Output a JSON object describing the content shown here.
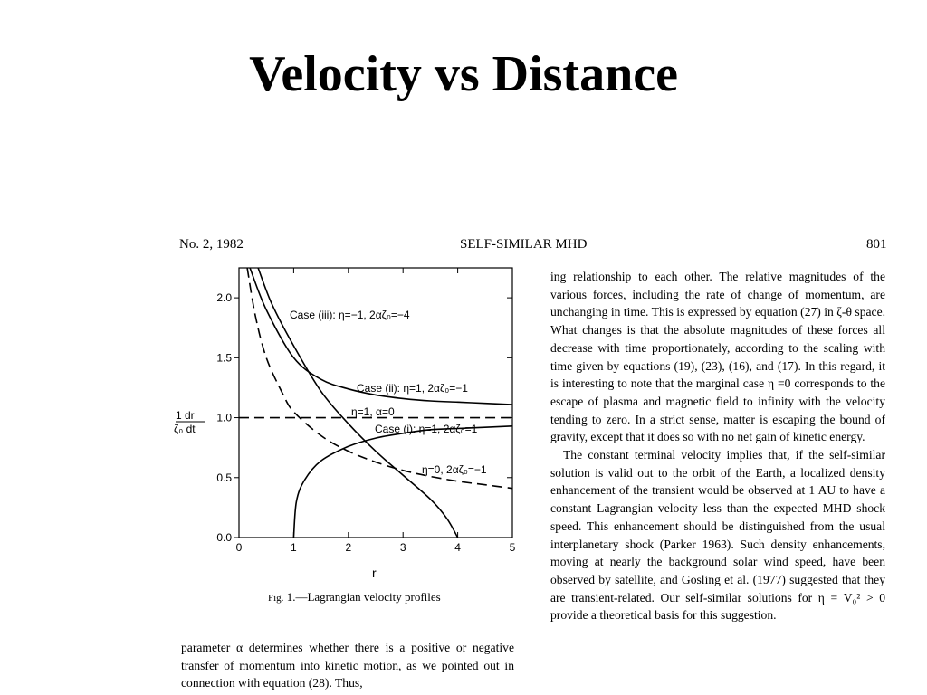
{
  "slide": {
    "title": "Velocity vs Distance"
  },
  "page": {
    "journal_issue": "No. 2, 1982",
    "running_title": "SELF-SIMILAR MHD",
    "page_number": "801"
  },
  "figure": {
    "caption_prefix": "Fig.",
    "caption_text": "1.—Lagrangian velocity profiles",
    "ylabel_top": "1  dr",
    "ylabel_bottom": "ζ₀ dt",
    "xlabel": "r",
    "labels": {
      "case3": "Case (iii): η=−1, 2αζ₀=−4",
      "case2": "Case (ii): η=1, 2αζ₀=−1",
      "eta1": "η=1, α=0",
      "case1": "Case (i): η=1, 2αζ₀=1",
      "eta0": "η=0, 2αζ₀=−1"
    }
  },
  "chart_data": {
    "type": "line",
    "xlabel": "r",
    "ylabel": "(1/ζ₀) dr/dt",
    "xlim": [
      0,
      5
    ],
    "ylim": [
      0,
      2.25
    ],
    "x_ticks": [
      "0",
      "1",
      "2",
      "3",
      "4",
      "5"
    ],
    "y_ticks": [
      "0.0",
      "0.5",
      "1.0",
      "1.5",
      "2.0"
    ],
    "series": [
      {
        "name": "Case (iii): η=−1, 2αζ₀=−4",
        "style": "solid",
        "x": [
          0.35,
          0.6,
          1.0,
          1.5,
          2.0,
          2.5,
          3.0,
          3.5,
          3.8,
          4.0
        ],
        "y": [
          2.25,
          1.95,
          1.6,
          1.22,
          0.95,
          0.72,
          0.52,
          0.32,
          0.16,
          0.0
        ]
      },
      {
        "name": "Case (ii): η=1, 2αζ₀=−1",
        "style": "solid",
        "x": [
          0.2,
          0.5,
          1.0,
          1.5,
          2.0,
          2.5,
          3.0,
          3.5,
          4.0,
          4.5,
          5.0
        ],
        "y": [
          2.25,
          1.9,
          1.5,
          1.32,
          1.24,
          1.19,
          1.16,
          1.14,
          1.13,
          1.12,
          1.11
        ]
      },
      {
        "name": "η=1, α=0",
        "style": "dashed",
        "x": [
          0,
          5
        ],
        "y": [
          1.0,
          1.0
        ]
      },
      {
        "name": "Case (i): η=1, 2αζ₀=1",
        "style": "solid",
        "x": [
          1.0,
          1.05,
          1.2,
          1.5,
          2.0,
          2.5,
          3.0,
          3.5,
          4.0,
          4.5,
          5.0
        ],
        "y": [
          0.0,
          0.3,
          0.48,
          0.64,
          0.76,
          0.83,
          0.87,
          0.9,
          0.91,
          0.92,
          0.93
        ]
      },
      {
        "name": "η=0, 2αζ₀=−1",
        "style": "dashed",
        "x": [
          0.15,
          0.3,
          0.5,
          0.8,
          1.0,
          1.5,
          2.0,
          2.5,
          3.0,
          3.5,
          4.0,
          4.5,
          5.0
        ],
        "y": [
          2.25,
          1.85,
          1.5,
          1.2,
          1.05,
          0.85,
          0.72,
          0.63,
          0.56,
          0.51,
          0.47,
          0.44,
          0.41
        ]
      }
    ]
  },
  "text": {
    "right_col": [
      "ing relationship to each other. The relative magnitudes of the various forces, including the rate of change of momentum, are unchanging in time. This is expressed by equation (27) in ζ-θ space. What changes is that the absolute magnitudes of these forces all decrease with time proportionately, according to the scaling with time given by equations (19), (23), (16), and (17). In this regard, it is interesting to note that the marginal case η =0 corresponds to the escape of plasma and magnetic field to infinity with the velocity tending to zero. In a strict sense, matter is escaping the bound of gravity, except that it does so with no net gain of kinetic energy.",
      "The constant terminal velocity implies that, if the self-similar solution is valid out to the orbit of the Earth, a localized density enhancement of the transient would be observed at 1 AU to have a constant Lagrangian velocity less than the expected MHD shock speed. This enhancement should be distinguished from the usual interplanetary shock (Parker 1963). Such density enhancements, moving at nearly the background solar wind speed, have been observed by satellite, and Gosling et al. (1977) suggested that they are transient-related. Our self-similar solutions for η = V₀² > 0 provide a theoretical basis for this suggestion."
    ],
    "left_col": "parameter α determines whether there is a positive or negative transfer of momentum into kinetic motion, as we pointed out in connection with equation (28). Thus,"
  }
}
